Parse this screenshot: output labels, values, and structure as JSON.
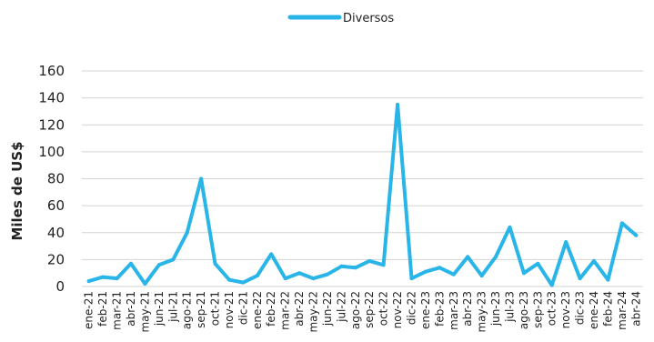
{
  "chart_data": {
    "type": "line",
    "title": "",
    "xlabel": "",
    "ylabel": "Miles de US$",
    "ylim": [
      0,
      160
    ],
    "yticks": [
      0,
      20,
      40,
      60,
      80,
      100,
      120,
      140,
      160
    ],
    "grid": true,
    "legend_position": "top-center",
    "categories": [
      "ene-21",
      "feb-21",
      "mar-21",
      "abr-21",
      "may-21",
      "jun-21",
      "jul-21",
      "ago-21",
      "sep-21",
      "oct-21",
      "nov-21",
      "dic-21",
      "ene-22",
      "feb-22",
      "mar-22",
      "abr-22",
      "may-22",
      "jun-22",
      "jul-22",
      "ago-22",
      "sep-22",
      "oct-22",
      "nov-22",
      "dic-22",
      "ene-23",
      "feb-23",
      "mar-23",
      "abr-23",
      "may-23",
      "jun-23",
      "jul-23",
      "ago-23",
      "sep-23",
      "oct-23",
      "nov-23",
      "dic-23",
      "ene-24",
      "feb-24",
      "mar-24",
      "abr-24"
    ],
    "series": [
      {
        "name": "Diversos",
        "color": "#29b5e8",
        "values": [
          4,
          7,
          6,
          17,
          2,
          16,
          20,
          40,
          80,
          17,
          5,
          3,
          8,
          24,
          6,
          10,
          6,
          9,
          15,
          14,
          19,
          16,
          135,
          6,
          11,
          14,
          9,
          22,
          8,
          22,
          44,
          10,
          17,
          1,
          33,
          6,
          19,
          5,
          47,
          38
        ]
      }
    ]
  }
}
